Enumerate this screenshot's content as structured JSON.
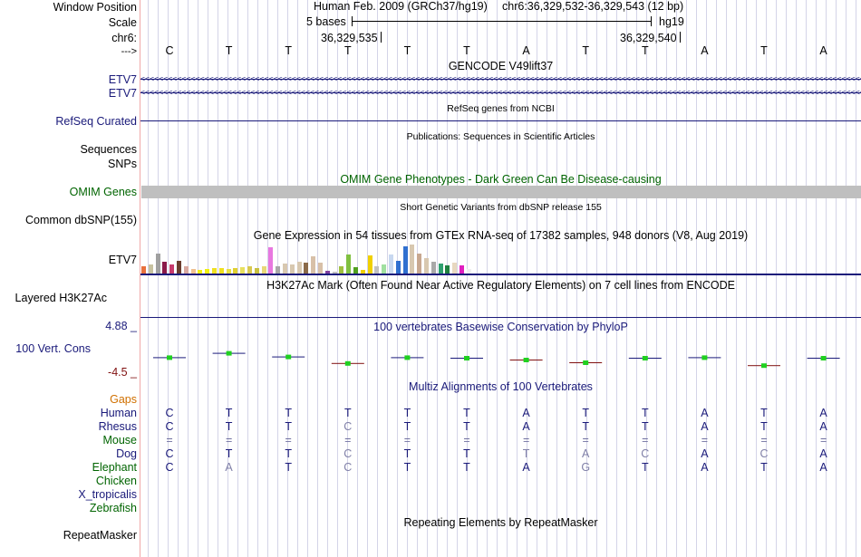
{
  "labels": {
    "window_position": "Window Position",
    "scale": "Scale",
    "chrom": "chr6:",
    "strand": "--->",
    "etv7_a": "ETV7",
    "etv7_b": "ETV7",
    "refseq": "RefSeq Curated",
    "sequences": "Sequences",
    "snps": "SNPs",
    "omim": "OMIM Genes",
    "common_dbsnp": "Common dbSNP(155)",
    "gtex_gene": "ETV7",
    "h3k27ac": "Layered H3K27Ac",
    "phylop_max": "4.88 _",
    "vert_cons": "100 Vert. Cons",
    "phylop_min": "-4.5 _",
    "gaps": "Gaps",
    "human": "Human",
    "rhesus": "Rhesus",
    "mouse": "Mouse",
    "dog": "Dog",
    "elephant": "Elephant",
    "chicken": "Chicken",
    "x_tropicalis": "X_tropicalis",
    "zebrafish": "Zebrafish",
    "repeatmasker": "RepeatMasker"
  },
  "header": {
    "assembly": "Human Feb. 2009 (GRCh37/hg19)",
    "position": "chr6:36,329,532-36,329,543 (12 bp)",
    "scale_text": "5 bases",
    "scale_db": "hg19",
    "coord_left": "36,329,535",
    "coord_right": "36,329,540"
  },
  "bases": [
    "C",
    "T",
    "T",
    "T",
    "T",
    "T",
    "A",
    "T",
    "T",
    "A",
    "T",
    "A"
  ],
  "titles": {
    "gencode": "GENCODE V49lift37",
    "refseq": "RefSeq genes from NCBI",
    "publications": "Publications: Sequences in Scientific Articles",
    "omim": "OMIM Gene Phenotypes - Dark Green Can Be Disease-causing",
    "dbsnp": "Short Genetic Variants from dbSNP release 155",
    "gtex": "Gene Expression in 54 tissues from GTEx RNA-seq of 17382 samples, 948 donors (V8, Aug 2019)",
    "h3k27ac": "H3K27Ac Mark (Often Found Near Active Regulatory Elements) on 7 cell lines from ENCODE",
    "phylop": "100 vertebrates Basewise Conservation by PhyloP",
    "multiz": "Multiz Alignments of 100 Vertebrates",
    "repeatmasker": "Repeating Elements by RepeatMasker"
  },
  "alignment": {
    "human": [
      "C",
      "T",
      "T",
      "T",
      "T",
      "T",
      "A",
      "T",
      "T",
      "A",
      "T",
      "A"
    ],
    "rhesus": [
      "C",
      "T",
      "T",
      "C",
      "T",
      "T",
      "A",
      "T",
      "T",
      "A",
      "T",
      "A"
    ],
    "mouse": [
      "=",
      "=",
      "=",
      "=",
      "=",
      "=",
      "=",
      "=",
      "=",
      "=",
      "=",
      "="
    ],
    "dog": [
      "C",
      "T",
      "T",
      "C",
      "T",
      "T",
      "T",
      "A",
      "C",
      "A",
      "C",
      "A"
    ],
    "elephant": [
      "C",
      "A",
      "T",
      "C",
      "T",
      "T",
      "A",
      "G",
      "T",
      "A",
      "T",
      "A"
    ]
  },
  "gtex_values": [
    8,
    10,
    22,
    13,
    10,
    14,
    8,
    5,
    4,
    5,
    6,
    6,
    5,
    6,
    7,
    8,
    6,
    8,
    29,
    8,
    11,
    10,
    13,
    12,
    19,
    12,
    3,
    2,
    8,
    21,
    7,
    4,
    20,
    8,
    10,
    21,
    14,
    30,
    32,
    22,
    17,
    13,
    11,
    9,
    12,
    9,
    5
  ],
  "gtex_colors": [
    "#e8703c",
    "#c7c2a0",
    "#a0a0a0",
    "#8a1a4a",
    "#c83a6c",
    "#6a3d2e",
    "#d8a8a0",
    "#f0c090",
    "#f0f010",
    "#f0f010",
    "#f0e020",
    "#f0e020",
    "#e8e040",
    "#e0d030",
    "#e8e060",
    "#d8c850",
    "#c8c040",
    "#e8d878",
    "#e878e0",
    "#a8a8a8",
    "#d8c8b0",
    "#d8c8b0",
    "#d8c8b0",
    "#8a6a4a",
    "#d8c0a8",
    "#d8c0a8",
    "#8040a0",
    "#c0c0c0",
    "#a0c040",
    "#80c040",
    "#50a020",
    "#f0d000",
    "#f0d000",
    "#c0c0c0",
    "#a0e0a0",
    "#c8d8f0",
    "#3070d0",
    "#3070d0",
    "#d8c8b0",
    "#c8a890",
    "#d8c8b0",
    "#a8a8a8",
    "#30a070",
    "#208040",
    "#e8d8c0",
    "#e020c0",
    "#f0f0f0"
  ],
  "phylop_values": [
    0.2,
    0.8,
    0.3,
    -0.6,
    0.2,
    0.1,
    -0.1,
    -0.5,
    0.1,
    0.2,
    -0.9,
    0.1
  ],
  "colors": {
    "track_label_blue": "#1a1a7a",
    "omim_green": "#006400",
    "gaps_orange": "#d07000",
    "phylop_axis_red": "#801010"
  }
}
